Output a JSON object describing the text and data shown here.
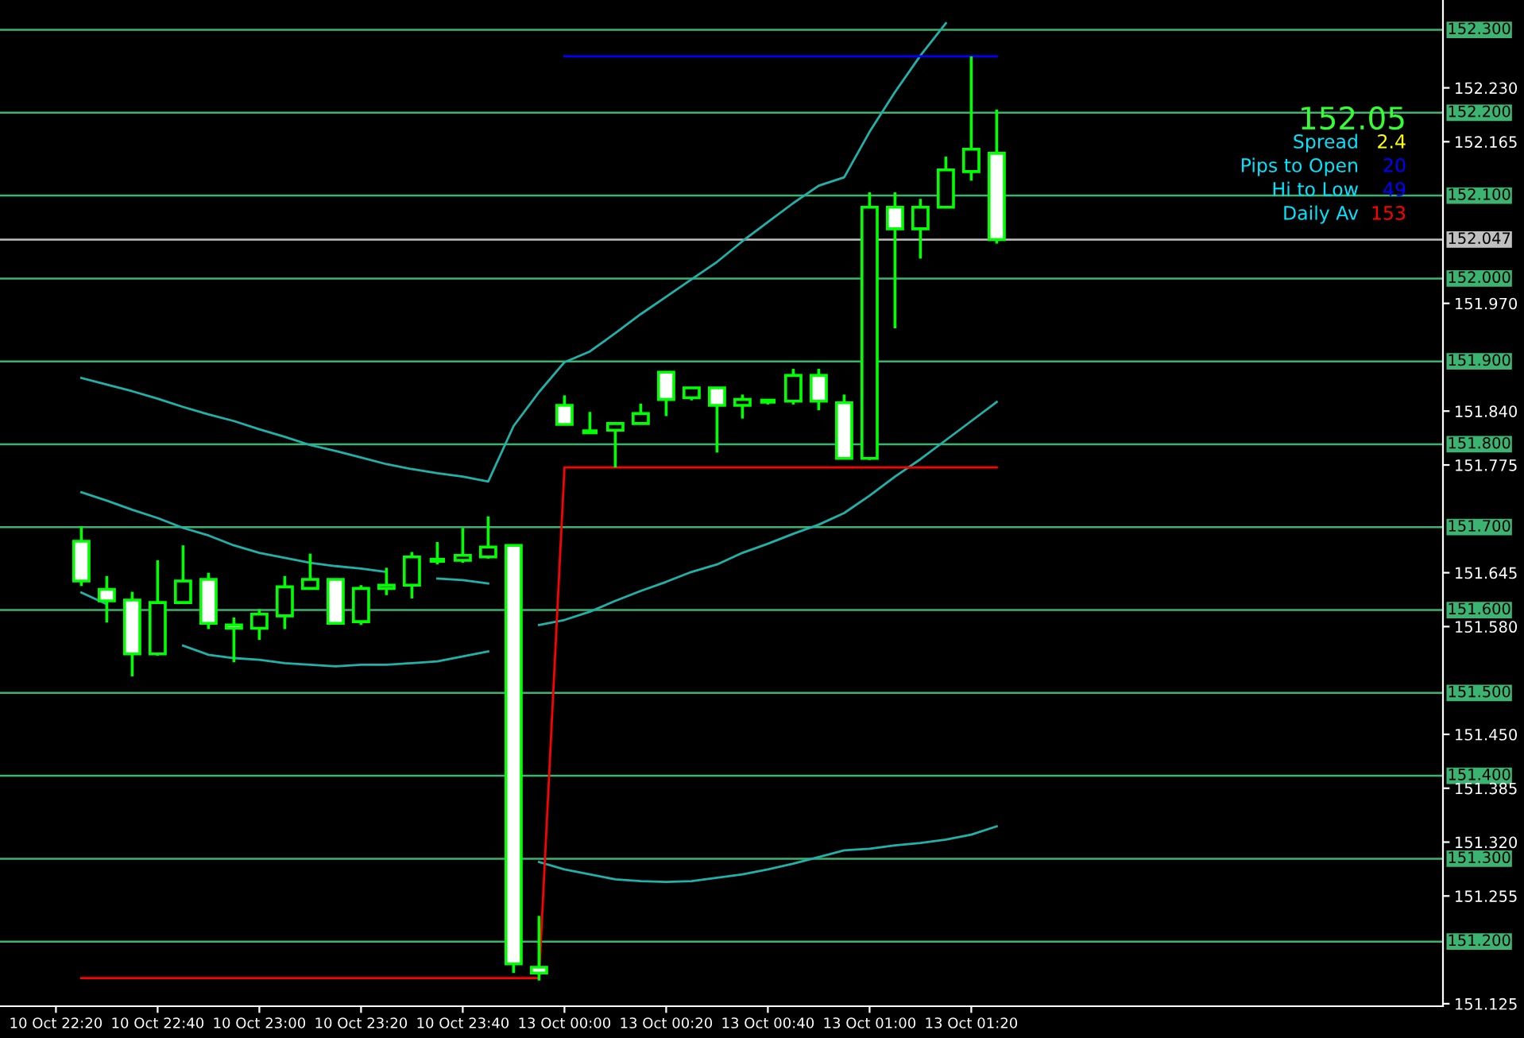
{
  "chart_data": {
    "type": "candlestick",
    "categories": [
      "10 Oct 22:20",
      null,
      null,
      null,
      "10 Oct 22:40",
      null,
      null,
      null,
      "10 Oct 23:00",
      null,
      null,
      null,
      "10 Oct 23:20",
      null,
      null,
      null,
      "10 Oct 23:40",
      null,
      null,
      null,
      "13 Oct 00:00",
      null,
      null,
      null,
      "13 Oct 00:20",
      null,
      null,
      null,
      "13 Oct 00:40",
      null,
      null,
      null,
      "13 Oct 01:00",
      null,
      null,
      null,
      "13 Oct 01:20",
      null
    ],
    "ohlc": [
      null,
      [
        151.683,
        151.701,
        151.629,
        151.635
      ],
      [
        151.625,
        151.641,
        151.585,
        151.611
      ],
      [
        151.612,
        151.622,
        151.52,
        151.547
      ],
      [
        151.547,
        151.66,
        151.545,
        151.609
      ],
      [
        151.609,
        151.678,
        151.609,
        151.635
      ],
      [
        151.637,
        151.645,
        151.577,
        151.584
      ],
      [
        151.582,
        151.591,
        151.537,
        151.578
      ],
      [
        151.578,
        151.601,
        151.564,
        151.595
      ],
      [
        151.593,
        151.641,
        151.577,
        151.628
      ],
      [
        151.626,
        151.668,
        151.626,
        151.637
      ],
      [
        151.637,
        151.637,
        151.584,
        151.584
      ],
      [
        151.586,
        151.63,
        151.582,
        151.626
      ],
      [
        151.626,
        151.651,
        151.618,
        151.63
      ],
      [
        151.63,
        151.67,
        151.614,
        151.664
      ],
      [
        151.66,
        151.682,
        151.655,
        151.66
      ],
      [
        151.66,
        151.699,
        151.657,
        151.666
      ],
      [
        151.664,
        151.713,
        151.662,
        151.676
      ],
      [
        151.678,
        151.678,
        151.162,
        151.173
      ],
      [
        151.169,
        151.231,
        151.153,
        151.162
      ],
      [
        151.847,
        151.859,
        151.824,
        151.824
      ],
      [
        151.815,
        151.839,
        151.815,
        151.815
      ],
      [
        151.817,
        151.825,
        151.772,
        151.825
      ],
      [
        151.825,
        151.849,
        151.825,
        151.837
      ],
      [
        151.887,
        151.887,
        151.834,
        151.854
      ],
      [
        151.856,
        151.868,
        151.853,
        151.868
      ],
      [
        151.868,
        151.868,
        151.79,
        151.847
      ],
      [
        151.847,
        151.86,
        151.831,
        151.854
      ],
      [
        151.852,
        151.854,
        151.848,
        151.852
      ],
      [
        151.852,
        151.891,
        151.848,
        151.883
      ],
      [
        151.883,
        151.891,
        151.841,
        151.852
      ],
      [
        151.85,
        151.86,
        151.783,
        151.783
      ],
      [
        151.783,
        152.104,
        151.781,
        152.086
      ],
      [
        152.086,
        152.104,
        151.94,
        152.06
      ],
      [
        152.06,
        152.096,
        152.024,
        152.086
      ],
      [
        152.086,
        152.147,
        152.086,
        152.131
      ],
      [
        152.129,
        152.268,
        152.118,
        152.156
      ],
      [
        152.151,
        152.204,
        152.042,
        152.047
      ]
    ],
    "colors": [
      null,
      "#ffffff",
      "#ffffff",
      "#ffffff",
      "#000000",
      "#000000",
      "#ffffff",
      "#ffffff",
      "#000000",
      "#000000",
      "#000000",
      "#ffffff",
      "#000000",
      "#000000",
      "#000000",
      "#00ff00",
      "#000000",
      "#000000",
      "#ffffff",
      "#ffffff",
      "#ffffff",
      "#00ff00",
      "#000000",
      "#000000",
      "#ffffff",
      "#000000",
      "#ffffff",
      "#000000",
      "#00ff00",
      "#000000",
      "#ffffff",
      "#ffffff",
      "#000000",
      "#ffffff",
      "#000000",
      "#000000",
      "#000000",
      "#ffffff"
    ],
    "color": "#00ff00",
    "series": [
      {
        "type": "line",
        "color": "#20b2aa",
        "values": [
          null,
          151.88,
          151.872,
          151.864,
          151.855,
          151.845,
          151.836,
          151.828,
          151.818,
          151.809,
          151.799,
          151.792,
          151.784,
          151.776,
          151.77,
          151.765,
          151.761,
          151.755,
          151.822,
          151.863,
          151.899,
          151.912,
          151.934,
          151.957,
          151.978,
          151.999,
          152.02,
          152.045,
          152.068,
          152.091,
          152.112,
          152.122,
          152.177,
          152.225,
          152.269,
          152.308,
          null,
          null
        ]
      },
      {
        "type": "line",
        "color": "#20b2aa",
        "values": [
          null,
          151.742,
          151.732,
          151.721,
          151.711,
          151.699,
          151.69,
          151.678,
          151.669,
          151.663,
          151.657,
          151.653,
          151.65,
          151.646,
          null,
          151.638,
          151.636,
          151.632,
          null,
          151.582,
          151.588,
          151.598,
          151.611,
          151.623,
          151.634,
          151.646,
          151.655,
          151.669,
          151.68,
          151.692,
          151.703,
          151.717,
          151.738,
          151.761,
          151.782,
          151.805,
          151.828,
          151.851
        ]
      },
      {
        "type": "line",
        "color": "#20b2aa",
        "values": [
          null,
          151.621,
          151.607,
          null,
          null,
          151.557,
          151.546,
          151.542,
          151.54,
          151.536,
          151.534,
          151.532,
          151.534,
          151.534,
          151.536,
          151.538,
          151.544,
          151.55,
          null,
          151.296,
          151.287,
          151.281,
          151.275,
          151.273,
          151.272,
          151.273,
          151.277,
          151.281,
          151.287,
          151.294,
          151.302,
          151.31,
          151.312,
          151.316,
          151.319,
          151.323,
          151.329,
          151.339
        ]
      },
      {
        "type": "line",
        "color": "#ff0000",
        "values": [
          null,
          151.156,
          151.156,
          151.156,
          151.156,
          151.156,
          151.156,
          151.156,
          151.156,
          151.156,
          151.156,
          151.156,
          151.156,
          151.156,
          151.156,
          151.156,
          151.156,
          151.156,
          151.156,
          151.156,
          151.772,
          151.772,
          151.772,
          151.772,
          151.772,
          151.772,
          151.772,
          151.772,
          151.772,
          151.772,
          151.772,
          151.772,
          151.772,
          151.772,
          151.772,
          151.772,
          151.772,
          151.772
        ]
      },
      {
        "type": "line",
        "color": "#0000ff",
        "values": [
          null,
          null,
          null,
          null,
          null,
          null,
          null,
          null,
          null,
          null,
          null,
          null,
          null,
          null,
          null,
          null,
          null,
          null,
          null,
          null,
          152.268,
          152.268,
          152.268,
          152.268,
          152.268,
          152.268,
          152.268,
          152.268,
          152.268,
          152.268,
          152.268,
          152.268,
          152.268,
          152.268,
          152.268,
          152.268,
          152.268,
          152.268
        ]
      }
    ],
    "ylim": [
      151.122,
      152.336
    ],
    "yticks": [
      {
        "value": 151.125,
        "label": "151.125"
      },
      {
        "value": 151.255,
        "label": "151.255"
      },
      {
        "value": 151.32,
        "label": "151.320"
      },
      {
        "value": 151.385,
        "label": "151.385"
      },
      {
        "value": 151.45,
        "label": "151.450"
      },
      {
        "value": 151.58,
        "label": "151.580"
      },
      {
        "value": 151.645,
        "label": "151.645"
      },
      {
        "value": 151.775,
        "label": "151.775"
      },
      {
        "value": 151.84,
        "label": "151.840"
      },
      {
        "value": 151.97,
        "label": "151.970"
      },
      {
        "value": 152.165,
        "label": "152.165"
      },
      {
        "value": 152.23,
        "label": "152.230"
      }
    ],
    "ref_lines": [
      {
        "axis": "y",
        "value": 152.3,
        "label": "152.300",
        "color": "#3cb371"
      },
      {
        "axis": "y",
        "value": 152.2,
        "label": "152.200",
        "color": "#3cb371"
      },
      {
        "axis": "y",
        "value": 152.1,
        "label": "152.100",
        "color": "#3cb371"
      },
      {
        "axis": "y",
        "value": 152.047,
        "label": "152.047",
        "color": "#c0c0c0"
      },
      {
        "axis": "y",
        "value": 152.0,
        "label": "152.000",
        "color": "#3cb371"
      },
      {
        "axis": "y",
        "value": 151.9,
        "label": "151.900",
        "color": "#3cb371"
      },
      {
        "axis": "y",
        "value": 151.8,
        "label": "151.800",
        "color": "#3cb371"
      },
      {
        "axis": "y",
        "value": 151.7,
        "label": "151.700",
        "color": "#3cb371"
      },
      {
        "axis": "y",
        "value": 151.6,
        "label": "151.600",
        "color": "#3cb371"
      },
      {
        "axis": "y",
        "value": 151.5,
        "label": "151.500",
        "color": "#3cb371"
      },
      {
        "axis": "y",
        "value": 151.4,
        "label": "151.400",
        "color": "#3cb371"
      },
      {
        "axis": "y",
        "value": 151.3,
        "label": "151.300",
        "color": "#3cb371"
      },
      {
        "axis": "y",
        "value": 151.2,
        "label": "151.200",
        "color": "#3cb371"
      }
    ],
    "annotations": [
      "152.05",
      "Spread",
      "2.4",
      "Pips to Open",
      "20",
      "Hi to Low",
      "49",
      "Daily Av",
      "153"
    ],
    "grid": false,
    "legend": false
  }
}
